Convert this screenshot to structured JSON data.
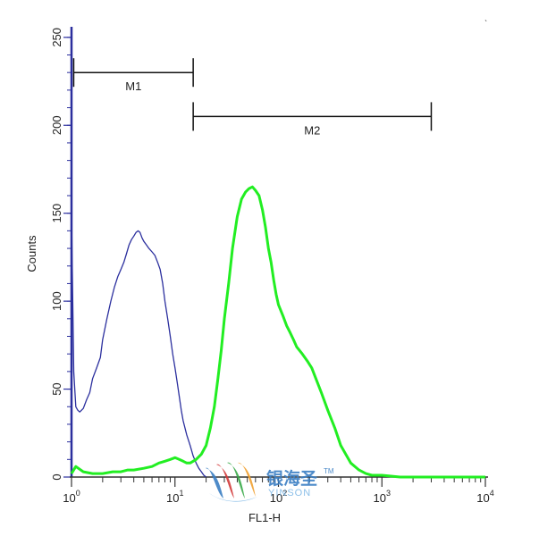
{
  "chart_data": {
    "type": "line",
    "title": "",
    "xlabel": "FL1-H",
    "ylabel": "Counts",
    "xscale": "log",
    "xlim": [
      1,
      10000
    ],
    "ylim": [
      0,
      256
    ],
    "x_ticks": [
      {
        "value": 1,
        "base": "10",
        "exp": "0"
      },
      {
        "value": 10,
        "base": "10",
        "exp": "1"
      },
      {
        "value": 100,
        "base": "10",
        "exp": "2"
      },
      {
        "value": 1000,
        "base": "10",
        "exp": "3"
      },
      {
        "value": 10000,
        "base": "10",
        "exp": "4"
      }
    ],
    "y_ticks": [
      0,
      50,
      100,
      150,
      200,
      250
    ],
    "grid": false,
    "series": [
      {
        "color": "#2b2f9e",
        "x": [
          1.0,
          1.05,
          1.1,
          1.15,
          1.2,
          1.3,
          1.4,
          1.5,
          1.6,
          1.75,
          1.9,
          2.0,
          2.2,
          2.4,
          2.6,
          2.8,
          3.0,
          3.2,
          3.4,
          3.6,
          3.8,
          4.0,
          4.2,
          4.4,
          4.6,
          4.8,
          5.0,
          5.3,
          5.6,
          6.0,
          6.4,
          6.8,
          7.2,
          7.6,
          8.0,
          8.5,
          9.0,
          9.5,
          10.0,
          10.5,
          11.0,
          11.5,
          12.0,
          13.0,
          14.0,
          15.0,
          16.0,
          17.0,
          18.0,
          19.0,
          20.0
        ],
        "y": [
          150,
          60,
          40,
          38,
          37,
          39,
          44,
          48,
          56,
          62,
          68,
          78,
          90,
          100,
          108,
          114,
          118,
          122,
          127,
          132,
          135,
          137,
          139,
          140,
          139,
          136,
          134,
          132,
          130,
          128,
          126,
          122,
          118,
          110,
          100,
          90,
          80,
          70,
          62,
          54,
          46,
          38,
          32,
          24,
          18,
          12,
          8,
          5,
          3,
          1,
          0
        ]
      },
      {
        "color": "#22ee22",
        "x": [
          1.0,
          1.1,
          1.3,
          1.6,
          2.0,
          2.5,
          3.0,
          3.5,
          4.0,
          5.0,
          6.0,
          7.0,
          8.0,
          9.0,
          10.0,
          11.0,
          12.0,
          13.0,
          14.0,
          15.0,
          16.0,
          18.0,
          20.0,
          22.0,
          24.0,
          26.0,
          28.0,
          30.0,
          33.0,
          36.0,
          40.0,
          44.0,
          48.0,
          52.0,
          56.0,
          60.0,
          65.0,
          70.0,
          75.0,
          80.0,
          85.0,
          90.0,
          95.0,
          100.0,
          110.0,
          120.0,
          130.0,
          140.0,
          150.0,
          170.0,
          190.0,
          210.0,
          230.0,
          260.0,
          300.0,
          350.0,
          400.0,
          500.0,
          600.0,
          700.0,
          800.0,
          1000.0,
          1500.0,
          2000.0,
          3000.0,
          5000.0,
          8000.0,
          10000.0
        ],
        "y": [
          2,
          6,
          3,
          2,
          2,
          3,
          3,
          4,
          4,
          5,
          6,
          8,
          9,
          10,
          11,
          10,
          9,
          8,
          8,
          9,
          10,
          13,
          18,
          28,
          40,
          56,
          72,
          90,
          110,
          130,
          148,
          158,
          162,
          164,
          165,
          163,
          160,
          152,
          142,
          130,
          122,
          112,
          104,
          98,
          92,
          86,
          82,
          78,
          74,
          70,
          66,
          62,
          56,
          48,
          38,
          28,
          18,
          8,
          4,
          2,
          1,
          1,
          0,
          0,
          0,
          0,
          0,
          0
        ]
      }
    ],
    "markers": [
      {
        "label": "M1",
        "x_start": 1.05,
        "x_end": 15,
        "y": 230
      },
      {
        "label": "M2",
        "x_start": 15,
        "x_end": 3000,
        "y": 205
      }
    ]
  },
  "watermark": {
    "cn": "银海圣",
    "tm": "TM",
    "en": "YINSON",
    "colors": {
      "blue": "#3b7fc4",
      "red": "#d23a3a",
      "green": "#3aaa4a",
      "orange": "#f0a030",
      "light_blue": "#7fb8e6"
    }
  },
  "colors": {
    "axis": "#2b2f9e",
    "frame": "#333333",
    "marker": "#111111",
    "text": "#222222"
  }
}
